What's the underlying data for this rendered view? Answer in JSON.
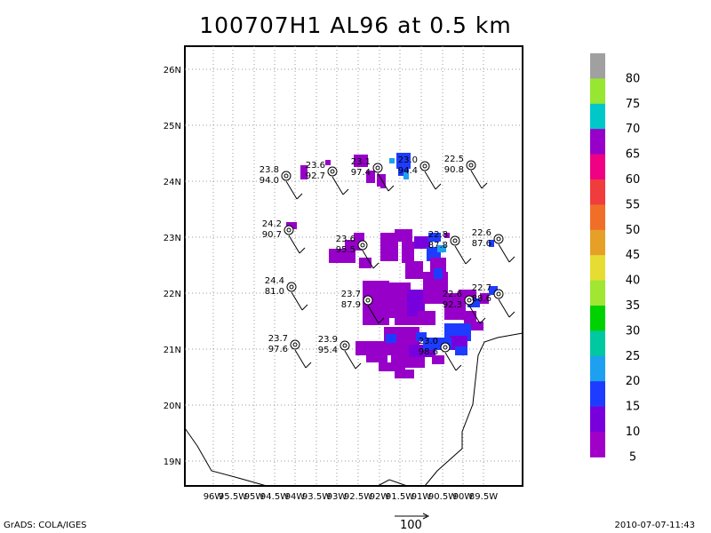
{
  "title": "100707H1 AL96 at 0.5 km",
  "footer_left": "GrADS: COLA/IGES",
  "footer_right": "2010-07-07-11:43",
  "reference_vector_label": "100",
  "axes": {
    "lon_labels": [
      "96W",
      "95.5W",
      "95W",
      "94.5W",
      "94W",
      "93.5W",
      "93W",
      "92.5W",
      "92W",
      "91.5W",
      "91W",
      "90.5W",
      "90W",
      "89.5W"
    ],
    "lat_labels": [
      "26N",
      "25N",
      "24N",
      "23N",
      "22N",
      "21N",
      "20N",
      "19N"
    ]
  },
  "colorbar": {
    "labels": [
      "80",
      "75",
      "70",
      "65",
      "60",
      "55",
      "50",
      "45",
      "40",
      "35",
      "30",
      "25",
      "20",
      "15",
      "10",
      "5"
    ],
    "colors": [
      "#a0a0a0",
      "#96e632",
      "#00c8c8",
      "#9600c8",
      "#f00082",
      "#f03c3c",
      "#f06e28",
      "#e6a028",
      "#e6dc32",
      "#a0e632",
      "#00d200",
      "#00c8a0",
      "#1ea0f0",
      "#1e3cff",
      "#7800dc",
      "#a000c8"
    ]
  },
  "stations": [
    {
      "t": "23.8",
      "h": "94.0"
    },
    {
      "t": "23.6",
      "h": "92.7"
    },
    {
      "t": "23.1",
      "h": "97.4"
    },
    {
      "t": "23.0",
      "h": "94.4"
    },
    {
      "t": "22.5",
      "h": "90.8"
    },
    {
      "t": "24.2",
      "h": "90.7"
    },
    {
      "t": "23.6",
      "h": "95.5"
    },
    {
      "t": "22.8",
      "h": "87.8"
    },
    {
      "t": "22.6",
      "h": "87.6"
    },
    {
      "t": "24.4",
      "h": "81.0"
    },
    {
      "t": "23.7",
      "h": "87.9"
    },
    {
      "t": "22.6",
      "h": "92.3"
    },
    {
      "t": "22.7",
      "h": "88.6"
    },
    {
      "t": "23.7",
      "h": "97.6"
    },
    {
      "t": "23.9",
      "h": "95.4"
    },
    {
      "t": "23.0",
      "h": "98.6"
    }
  ]
}
